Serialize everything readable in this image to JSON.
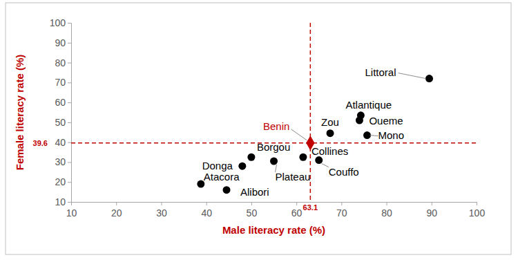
{
  "chart_data": {
    "type": "scatter",
    "x_label": "Male literacy rate (%)",
    "y_label": "Female literacy rate (%)",
    "categories": [
      "Littoral",
      "Atlantique",
      "Oueme",
      "Mono",
      "Zou",
      "Collines",
      "Couffo",
      "Borgou",
      "Plateau",
      "Donga",
      "Atacora",
      "Alibori"
    ],
    "x": [
      89.5,
      74.3,
      74.0,
      75.7,
      67.5,
      61.5,
      65.0,
      50.0,
      55.0,
      48.0,
      38.8,
      44.5
    ],
    "values": [
      72.0,
      53.5,
      51.0,
      43.5,
      44.5,
      32.5,
      31.0,
      32.5,
      30.5,
      28.0,
      19.0,
      16.0
    ],
    "color": "#000000",
    "marker": "circle",
    "xlim": [
      10,
      100
    ],
    "xticks": [
      10,
      20,
      30,
      40,
      50,
      60,
      70,
      80,
      90,
      100
    ],
    "ylim": [
      10,
      100
    ],
    "yticks": [
      10,
      20,
      30,
      40,
      50,
      60,
      70,
      80,
      90,
      100
    ],
    "grid": false,
    "reference": {
      "name": "Benin",
      "x": 63.1,
      "y": 39.6,
      "color": "#c00000",
      "marker": "diamond",
      "line_style": "dashed"
    }
  }
}
